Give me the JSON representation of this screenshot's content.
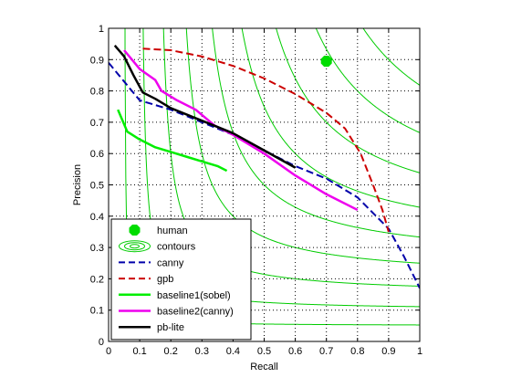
{
  "chart_data": {
    "type": "line",
    "title": "",
    "xlabel": "Recall",
    "ylabel": "Precision",
    "xlim": [
      0,
      1
    ],
    "ylim": [
      0,
      1
    ],
    "xticks": [
      "0",
      "0.1",
      "0.2",
      "0.3",
      "0.4",
      "0.5",
      "0.6",
      "0.7",
      "0.8",
      "0.9",
      "1"
    ],
    "yticks": [
      "0",
      "0.1",
      "0.2",
      "0.3",
      "0.4",
      "0.5",
      "0.6",
      "0.7",
      "0.8",
      "0.9",
      "1"
    ],
    "grid": true,
    "grid_style": "dotted",
    "legend_position": "bottom-left",
    "contour_f_levels": [
      0.1,
      0.2,
      0.3,
      0.4,
      0.5,
      0.6,
      0.7,
      0.8,
      0.9
    ],
    "contour_color": "#00cc00",
    "series": [
      {
        "name": "human",
        "style": "marker",
        "color": "#00dd00",
        "points": [
          [
            0.7,
            0.895
          ]
        ]
      },
      {
        "name": "contours",
        "style": "contour-symbol",
        "color": "#00cc00",
        "points": []
      },
      {
        "name": "canny",
        "style": "dashed",
        "color": "#0000aa",
        "points": [
          [
            0.0,
            0.89
          ],
          [
            0.05,
            0.83
          ],
          [
            0.1,
            0.77
          ],
          [
            0.2,
            0.74
          ],
          [
            0.3,
            0.7
          ],
          [
            0.4,
            0.66
          ],
          [
            0.5,
            0.61
          ],
          [
            0.6,
            0.56
          ],
          [
            0.7,
            0.52
          ],
          [
            0.8,
            0.46
          ],
          [
            0.9,
            0.36
          ],
          [
            0.95,
            0.27
          ],
          [
            1.0,
            0.17
          ]
        ]
      },
      {
        "name": "gpb",
        "style": "dashed",
        "color": "#cc0000",
        "points": [
          [
            0.11,
            0.935
          ],
          [
            0.2,
            0.93
          ],
          [
            0.3,
            0.91
          ],
          [
            0.4,
            0.88
          ],
          [
            0.5,
            0.84
          ],
          [
            0.6,
            0.79
          ],
          [
            0.7,
            0.73
          ],
          [
            0.76,
            0.68
          ],
          [
            0.81,
            0.6
          ],
          [
            0.85,
            0.5
          ],
          [
            0.88,
            0.42
          ],
          [
            0.9,
            0.35
          ]
        ]
      },
      {
        "name": "baseline1(sobel)",
        "style": "solid",
        "color": "#00ee00",
        "points": [
          [
            0.03,
            0.74
          ],
          [
            0.06,
            0.67
          ],
          [
            0.1,
            0.645
          ],
          [
            0.15,
            0.62
          ],
          [
            0.2,
            0.605
          ],
          [
            0.25,
            0.59
          ],
          [
            0.3,
            0.575
          ],
          [
            0.35,
            0.56
          ],
          [
            0.38,
            0.545
          ]
        ]
      },
      {
        "name": "baseline2(canny)",
        "style": "solid",
        "color": "#ee00ee",
        "points": [
          [
            0.05,
            0.93
          ],
          [
            0.1,
            0.87
          ],
          [
            0.15,
            0.835
          ],
          [
            0.17,
            0.8
          ],
          [
            0.22,
            0.77
          ],
          [
            0.28,
            0.74
          ],
          [
            0.34,
            0.69
          ],
          [
            0.4,
            0.66
          ],
          [
            0.5,
            0.6
          ],
          [
            0.6,
            0.53
          ],
          [
            0.7,
            0.47
          ],
          [
            0.8,
            0.42
          ]
        ]
      },
      {
        "name": "pb-lite",
        "style": "solid",
        "color": "#000000",
        "points": [
          [
            0.02,
            0.945
          ],
          [
            0.05,
            0.91
          ],
          [
            0.08,
            0.85
          ],
          [
            0.11,
            0.795
          ],
          [
            0.15,
            0.775
          ],
          [
            0.2,
            0.745
          ],
          [
            0.3,
            0.705
          ],
          [
            0.4,
            0.665
          ],
          [
            0.5,
            0.61
          ],
          [
            0.6,
            0.555
          ]
        ]
      }
    ]
  }
}
